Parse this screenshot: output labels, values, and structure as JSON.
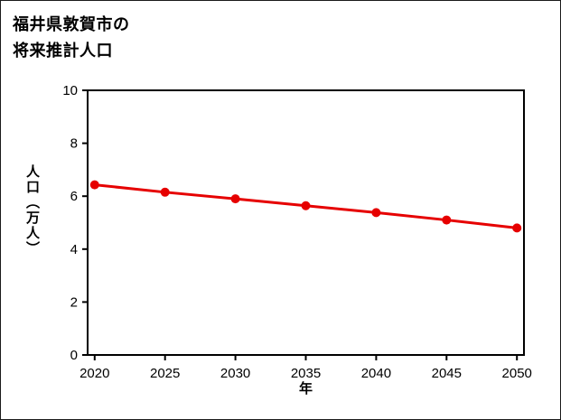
{
  "title": {
    "lines": [
      "福井県敦賀市の",
      "将来推計人口"
    ]
  },
  "chart_data": {
    "type": "line",
    "title": "福井県敦賀市の将来推計人口",
    "x": [
      2020,
      2025,
      2030,
      2035,
      2040,
      2045,
      2050
    ],
    "series": [
      {
        "name": "将来推計人口",
        "values": [
          6.43,
          6.15,
          5.9,
          5.64,
          5.38,
          5.1,
          4.8
        ]
      }
    ],
    "xlabel": "年",
    "ylabel": "人口（万人）",
    "xlim": [
      2019.5,
      2050.5
    ],
    "ylim": [
      0,
      10
    ],
    "xticks": [
      2020,
      2025,
      2030,
      2035,
      2040,
      2045,
      2050
    ],
    "yticks": [
      0,
      2,
      4,
      6,
      8,
      10
    ],
    "grid": false,
    "legend": "none",
    "line_color": "#e60000",
    "marker": "circle",
    "marker_size": 5
  }
}
